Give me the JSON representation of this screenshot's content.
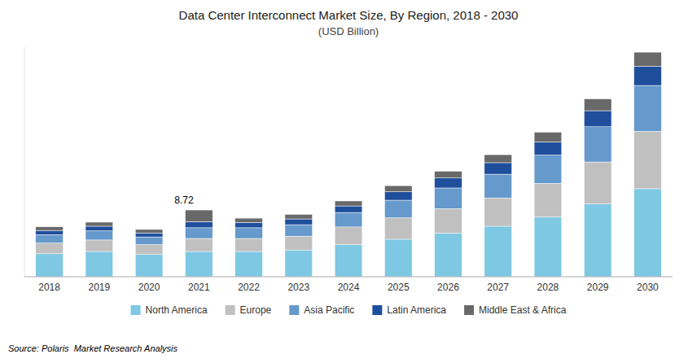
{
  "chart_data": {
    "type": "bar",
    "stacked": true,
    "title": "Data Center Interconnect Market Size, By Region, 2018 - 2030",
    "subtitle": "(USD Billion)",
    "source": "Source: Polaris  Market Research Analysis",
    "categories": [
      "2018",
      "2019",
      "2020",
      "2021",
      "2022",
      "2023",
      "2024",
      "2025",
      "2026",
      "2027",
      "2028",
      "2029",
      "2030"
    ],
    "series": [
      {
        "name": "North America",
        "color": "#7EC8E3",
        "values": [
          3.0,
          3.3,
          2.9,
          3.3,
          3.3,
          3.5,
          4.2,
          4.9,
          5.7,
          6.6,
          7.8,
          9.5,
          11.5
        ]
      },
      {
        "name": "Europe",
        "color": "#C0C0C0",
        "values": [
          1.4,
          1.5,
          1.3,
          1.7,
          1.7,
          1.8,
          2.3,
          2.8,
          3.2,
          3.7,
          4.4,
          5.5,
          7.5
        ]
      },
      {
        "name": "Asia Pacific",
        "color": "#6699CC",
        "values": [
          1.1,
          1.2,
          1.0,
          1.4,
          1.4,
          1.5,
          1.9,
          2.3,
          2.7,
          3.1,
          3.7,
          4.6,
          6.0
        ]
      },
      {
        "name": "Latin America",
        "color": "#1F4E9C",
        "values": [
          0.55,
          0.6,
          0.52,
          0.8,
          0.7,
          0.75,
          0.85,
          1.1,
          1.3,
          1.5,
          1.7,
          2.1,
          2.5
        ]
      },
      {
        "name": "Middle East & Africa",
        "color": "#696969",
        "values": [
          0.47,
          0.53,
          0.46,
          1.52,
          0.55,
          0.6,
          0.65,
          0.8,
          0.9,
          1.05,
          1.3,
          1.55,
          1.85
        ]
      }
    ],
    "annotations": [
      {
        "text": "8.72",
        "category": "2021",
        "value": 8.72
      }
    ],
    "ylim": [
      0,
      30
    ],
    "tick_labels": "x",
    "grid": false,
    "legend": "bottom"
  }
}
